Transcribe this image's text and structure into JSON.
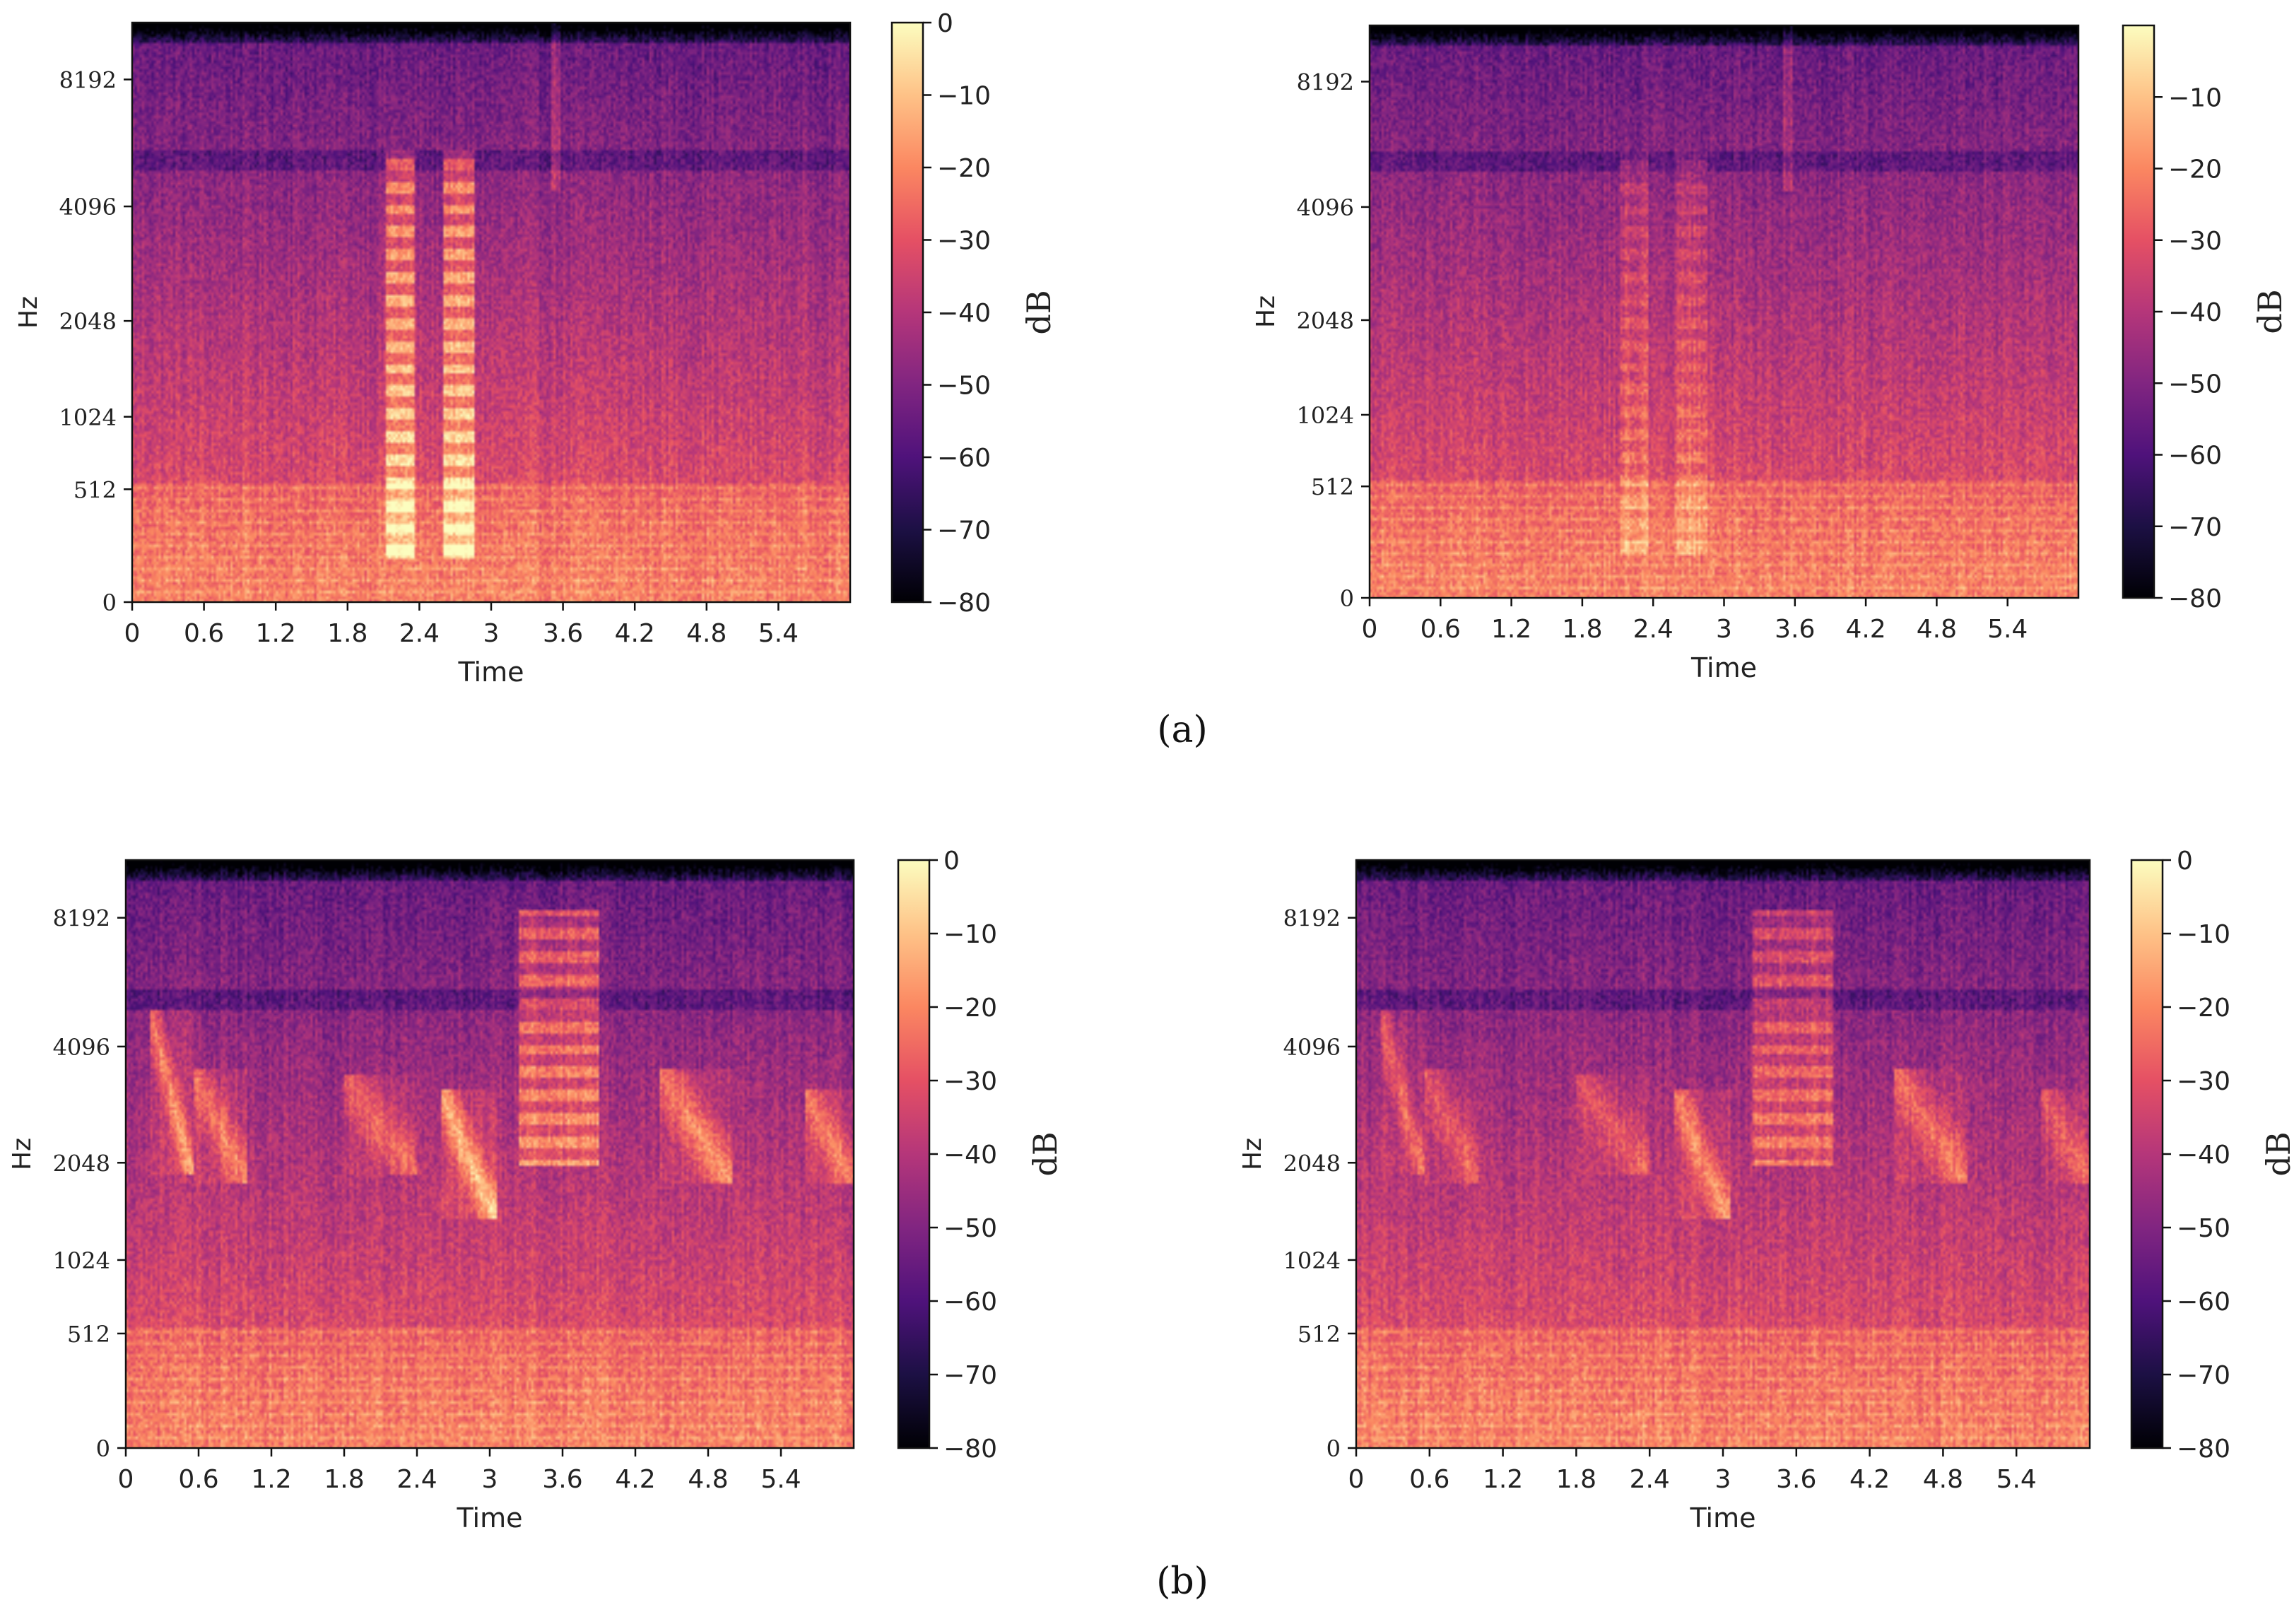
{
  "captions": [
    "(a)",
    "(b)"
  ],
  "colors": {
    "colormap": [
      "#000004",
      "#1c1044",
      "#4f127b",
      "#812581",
      "#b5367a",
      "#e55064",
      "#fb8761",
      "#fec287",
      "#fcfdbf"
    ],
    "axis": "#222222",
    "background": "#ffffff"
  },
  "chart_data": [
    {
      "type": "heatmap",
      "panel": "(a)",
      "side": "left",
      "xlabel": "Time",
      "ylabel": "Hz",
      "colorbar_label": "dB",
      "x_ticks": [
        "0",
        "0.6",
        "1.2",
        "1.8",
        "2.4",
        "3",
        "3.6",
        "4.2",
        "4.8",
        "5.4"
      ],
      "x_tick_values": [
        0,
        0.6,
        1.2,
        1.8,
        2.4,
        3,
        3.6,
        4.2,
        4.8,
        5.4
      ],
      "xlim": [
        0,
        6.0
      ],
      "y_ticks": [
        "0",
        "512",
        "1024",
        "2048",
        "4096",
        "8192"
      ],
      "y_tick_values": [
        0,
        512,
        1024,
        2048,
        4096,
        8192
      ],
      "yscale": "mel",
      "ylim": [
        0,
        11025
      ],
      "colorbar_ticks": [
        "0",
        "−10",
        "−20",
        "−30",
        "−40",
        "−50",
        "−60",
        "−70",
        "−80"
      ],
      "colorbar_values": [
        0,
        -10,
        -20,
        -30,
        -40,
        -50,
        -60,
        -70,
        -80
      ],
      "clim": [
        -80,
        0
      ],
      "events": [
        {
          "t_start": 2.12,
          "t_end": 2.35,
          "f_low": 170,
          "f_high": 5600,
          "intensity": 1.0,
          "kind": "harmonic-stack"
        },
        {
          "t_start": 2.6,
          "t_end": 2.85,
          "f_low": 170,
          "f_high": 5600,
          "intensity": 1.0,
          "kind": "harmonic-stack"
        },
        {
          "t_start": 3.5,
          "t_end": 3.58,
          "f_low": 4500,
          "f_high": 11000,
          "intensity": 0.35,
          "kind": "click"
        }
      ]
    },
    {
      "type": "heatmap",
      "panel": "(a)",
      "side": "right",
      "xlabel": "Time",
      "ylabel": "Hz",
      "colorbar_label": "dB",
      "x_ticks": [
        "0",
        "0.6",
        "1.2",
        "1.8",
        "2.4",
        "3",
        "3.6",
        "4.2",
        "4.8",
        "5.4"
      ],
      "x_tick_values": [
        0,
        0.6,
        1.2,
        1.8,
        2.4,
        3,
        3.6,
        4.2,
        4.8,
        5.4
      ],
      "xlim": [
        0,
        6.0
      ],
      "y_ticks": [
        "0",
        "512",
        "1024",
        "2048",
        "4096",
        "8192"
      ],
      "y_tick_values": [
        0,
        512,
        1024,
        2048,
        4096,
        8192
      ],
      "yscale": "mel",
      "ylim": [
        0,
        11025
      ],
      "colorbar_ticks": [
        "−10",
        "−20",
        "−30",
        "−40",
        "−50",
        "−60",
        "−70",
        "−80"
      ],
      "colorbar_values": [
        -10,
        -20,
        -30,
        -40,
        -50,
        -60,
        -70,
        -80
      ],
      "clim": [
        -80,
        0
      ],
      "events": [
        {
          "t_start": 2.12,
          "t_end": 2.35,
          "f_low": 170,
          "f_high": 5600,
          "intensity": 0.4,
          "kind": "harmonic-stack"
        },
        {
          "t_start": 2.6,
          "t_end": 2.85,
          "f_low": 170,
          "f_high": 5600,
          "intensity": 0.4,
          "kind": "harmonic-stack"
        },
        {
          "t_start": 3.5,
          "t_end": 3.58,
          "f_low": 4500,
          "f_high": 11000,
          "intensity": 0.3,
          "kind": "click"
        }
      ]
    },
    {
      "type": "heatmap",
      "panel": "(b)",
      "side": "left",
      "xlabel": "Time",
      "ylabel": "Hz",
      "colorbar_label": "dB",
      "x_ticks": [
        "0",
        "0.6",
        "1.2",
        "1.8",
        "2.4",
        "3",
        "3.6",
        "4.2",
        "4.8",
        "5.4"
      ],
      "x_tick_values": [
        0,
        0.6,
        1.2,
        1.8,
        2.4,
        3,
        3.6,
        4.2,
        4.8,
        5.4
      ],
      "xlim": [
        0,
        6.0
      ],
      "y_ticks": [
        "0",
        "512",
        "1024",
        "2048",
        "4096",
        "8192"
      ],
      "y_tick_values": [
        0,
        512,
        1024,
        2048,
        4096,
        8192
      ],
      "yscale": "mel",
      "ylim": [
        0,
        11025
      ],
      "colorbar_ticks": [
        "0",
        "−10",
        "−20",
        "−30",
        "−40",
        "−50",
        "−60",
        "−70",
        "−80"
      ],
      "colorbar_values": [
        0,
        -10,
        -20,
        -30,
        -40,
        -50,
        -60,
        -70,
        -80
      ],
      "clim": [
        -80,
        0
      ],
      "events": [
        {
          "t_start": 0.2,
          "t_end": 0.55,
          "f_low": 1900,
          "f_high": 5000,
          "intensity": 0.75,
          "kind": "sweep"
        },
        {
          "t_start": 0.55,
          "t_end": 1.0,
          "f_low": 1800,
          "f_high": 3600,
          "intensity": 0.6,
          "kind": "sweep"
        },
        {
          "t_start": 1.8,
          "t_end": 2.4,
          "f_low": 1900,
          "f_high": 3500,
          "intensity": 0.5,
          "kind": "sweep"
        },
        {
          "t_start": 2.6,
          "t_end": 3.05,
          "f_low": 1400,
          "f_high": 3200,
          "intensity": 0.9,
          "kind": "sweep"
        },
        {
          "t_start": 3.25,
          "t_end": 3.9,
          "f_low": 2000,
          "f_high": 8500,
          "intensity": 0.85,
          "kind": "harmonic-stack"
        },
        {
          "t_start": 4.4,
          "t_end": 5.0,
          "f_low": 1800,
          "f_high": 3600,
          "intensity": 0.7,
          "kind": "sweep"
        },
        {
          "t_start": 5.6,
          "t_end": 6.0,
          "f_low": 1800,
          "f_high": 3200,
          "intensity": 0.6,
          "kind": "sweep"
        }
      ]
    },
    {
      "type": "heatmap",
      "panel": "(b)",
      "side": "right",
      "xlabel": "Time",
      "ylabel": "Hz",
      "colorbar_label": "dB",
      "x_ticks": [
        "0",
        "0.6",
        "1.2",
        "1.8",
        "2.4",
        "3",
        "3.6",
        "4.2",
        "4.8",
        "5.4"
      ],
      "x_tick_values": [
        0,
        0.6,
        1.2,
        1.8,
        2.4,
        3,
        3.6,
        4.2,
        4.8,
        5.4
      ],
      "xlim": [
        0,
        6.0
      ],
      "y_ticks": [
        "0",
        "512",
        "1024",
        "2048",
        "4096",
        "8192"
      ],
      "y_tick_values": [
        0,
        512,
        1024,
        2048,
        4096,
        8192
      ],
      "yscale": "mel",
      "ylim": [
        0,
        11025
      ],
      "colorbar_ticks": [
        "0",
        "−10",
        "−20",
        "−30",
        "−40",
        "−50",
        "−60",
        "−70",
        "−80"
      ],
      "colorbar_values": [
        0,
        -10,
        -20,
        -30,
        -40,
        -50,
        -60,
        -70,
        -80
      ],
      "clim": [
        -80,
        0
      ],
      "events": [
        {
          "t_start": 0.2,
          "t_end": 0.55,
          "f_low": 1900,
          "f_high": 5000,
          "intensity": 0.55,
          "kind": "sweep"
        },
        {
          "t_start": 0.55,
          "t_end": 1.0,
          "f_low": 1800,
          "f_high": 3600,
          "intensity": 0.45,
          "kind": "sweep"
        },
        {
          "t_start": 1.8,
          "t_end": 2.4,
          "f_low": 1900,
          "f_high": 3500,
          "intensity": 0.4,
          "kind": "sweep"
        },
        {
          "t_start": 2.6,
          "t_end": 3.05,
          "f_low": 1400,
          "f_high": 3200,
          "intensity": 0.7,
          "kind": "sweep"
        },
        {
          "t_start": 3.25,
          "t_end": 3.9,
          "f_low": 2000,
          "f_high": 8500,
          "intensity": 0.7,
          "kind": "harmonic-stack"
        },
        {
          "t_start": 4.4,
          "t_end": 5.0,
          "f_low": 1800,
          "f_high": 3600,
          "intensity": 0.55,
          "kind": "sweep"
        },
        {
          "t_start": 5.6,
          "t_end": 6.0,
          "f_low": 1800,
          "f_high": 3200,
          "intensity": 0.45,
          "kind": "sweep"
        }
      ]
    }
  ]
}
